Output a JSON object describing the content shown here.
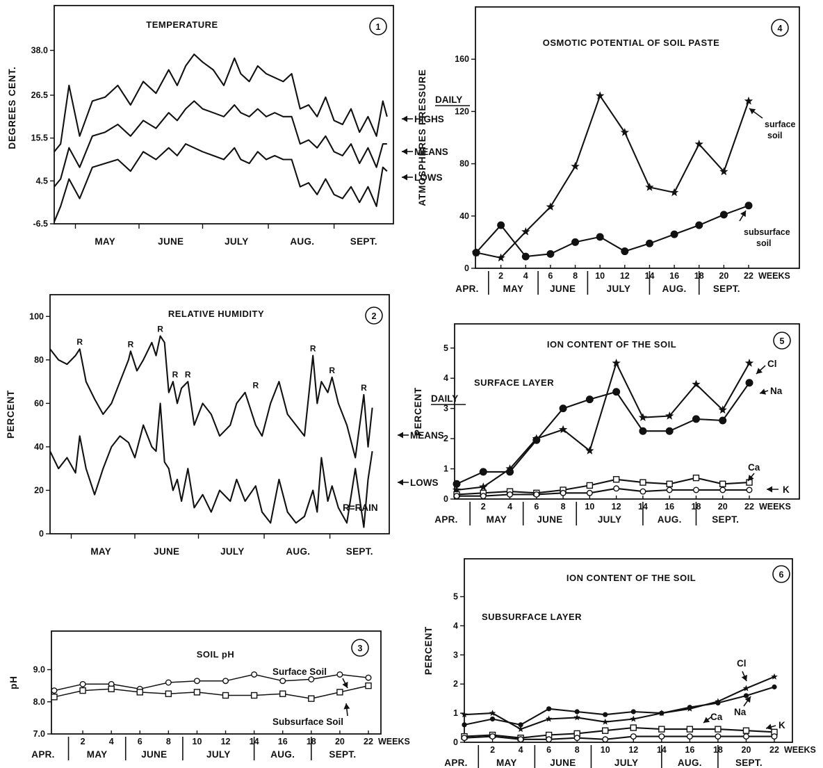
{
  "chart_data": [
    {
      "id": "p1",
      "type": "line",
      "panel_number": "1",
      "title": "TEMPERATURE",
      "ylabel": "DEGREES CENT.",
      "yticks": [
        "38.0",
        "26.5",
        "15.5",
        "4.5",
        "-6.5"
      ],
      "ylim": [
        -6.5,
        49.5
      ],
      "xticks": [
        "MAY",
        "JUNE",
        "JULY",
        "AUG.",
        "SEPT."
      ],
      "x_unit": "day (0 = Apr 21)",
      "legend_header": "DAILY",
      "series": [
        {
          "name": "HIGHS",
          "x": [
            0,
            3,
            7,
            12,
            18,
            24,
            30,
            36,
            42,
            48,
            54,
            58,
            62,
            66,
            70,
            75,
            80,
            85,
            88,
            92,
            96,
            100,
            104,
            108,
            112,
            116,
            120,
            124,
            128,
            132,
            136,
            140,
            144,
            148,
            152,
            155,
            157
          ],
          "values": [
            12,
            14,
            29,
            16,
            25,
            26,
            29,
            24,
            30,
            27,
            33,
            29,
            34,
            37,
            35,
            33,
            29,
            36,
            32,
            30,
            34,
            32,
            31,
            30,
            32,
            23,
            24,
            21,
            26,
            20,
            19,
            23,
            17,
            21,
            16,
            25,
            21
          ]
        },
        {
          "name": "MEANS",
          "x": [
            0,
            3,
            7,
            12,
            18,
            24,
            30,
            36,
            42,
            48,
            54,
            58,
            62,
            66,
            70,
            75,
            80,
            85,
            88,
            92,
            96,
            100,
            104,
            108,
            112,
            116,
            120,
            124,
            128,
            132,
            136,
            140,
            144,
            148,
            152,
            155,
            157
          ],
          "values": [
            3,
            5,
            13,
            8,
            16,
            17,
            19,
            16,
            20,
            18,
            22,
            20,
            23,
            25,
            23,
            22,
            21,
            24,
            22,
            21,
            23,
            21,
            22,
            21,
            21,
            14,
            15,
            13,
            16,
            12,
            11,
            14,
            9,
            13,
            8,
            14,
            14
          ]
        },
        {
          "name": "LOWS",
          "x": [
            0,
            3,
            7,
            12,
            18,
            24,
            30,
            36,
            42,
            48,
            54,
            58,
            62,
            66,
            70,
            75,
            80,
            85,
            88,
            92,
            96,
            100,
            104,
            108,
            112,
            116,
            120,
            124,
            128,
            132,
            136,
            140,
            144,
            148,
            152,
            155,
            157
          ],
          "values": [
            -6,
            -2,
            5,
            0,
            8,
            9,
            10,
            7,
            12,
            10,
            13,
            11,
            14,
            13,
            12,
            11,
            10,
            13,
            10,
            9,
            12,
            10,
            11,
            10,
            10,
            3,
            4,
            1,
            5,
            1,
            0,
            3,
            -1,
            3,
            -2,
            8,
            7
          ]
        }
      ]
    },
    {
      "id": "p2",
      "type": "line",
      "panel_number": "2",
      "title": "RELATIVE HUMIDITY",
      "ylabel": "PERCENT",
      "yticks": [
        "100",
        "80",
        "60",
        "40",
        "20",
        "0"
      ],
      "ylim": [
        0,
        110
      ],
      "xticks": [
        "MAY",
        "JUNE",
        "JULY",
        "AUG.",
        "SEPT."
      ],
      "x_unit": "day (0 = Apr 21)",
      "legend_header": "DAILY",
      "note": "R=RAIN",
      "rain_label": "R",
      "rain_days": [
        14,
        38,
        52,
        59,
        65,
        97,
        124,
        133,
        148
      ],
      "rain_levels": [
        85,
        84,
        91,
        70,
        70,
        65,
        82,
        72,
        64
      ],
      "series": [
        {
          "name": "MEANS",
          "x": [
            0,
            4,
            8,
            12,
            14,
            17,
            21,
            25,
            29,
            33,
            37,
            38,
            41,
            44,
            48,
            50,
            52,
            54,
            56,
            58,
            60,
            62,
            65,
            68,
            72,
            76,
            80,
            85,
            88,
            92,
            97,
            100,
            104,
            108,
            112,
            116,
            120,
            124,
            126,
            128,
            131,
            133,
            136,
            140,
            144,
            148,
            150,
            152
          ],
          "values": [
            85,
            80,
            78,
            82,
            85,
            70,
            62,
            55,
            60,
            70,
            80,
            84,
            75,
            80,
            88,
            82,
            91,
            88,
            65,
            70,
            60,
            67,
            70,
            50,
            60,
            55,
            45,
            50,
            60,
            65,
            50,
            45,
            60,
            70,
            55,
            50,
            45,
            82,
            60,
            70,
            65,
            72,
            60,
            50,
            35,
            64,
            40,
            58
          ]
        },
        {
          "name": "LOWS",
          "x": [
            0,
            4,
            8,
            12,
            14,
            17,
            21,
            25,
            29,
            33,
            37,
            40,
            44,
            48,
            50,
            52,
            54,
            56,
            58,
            60,
            62,
            65,
            68,
            72,
            76,
            80,
            85,
            88,
            92,
            97,
            100,
            104,
            108,
            112,
            116,
            120,
            124,
            126,
            128,
            131,
            133,
            136,
            140,
            144,
            148,
            150,
            152
          ],
          "values": [
            38,
            30,
            35,
            28,
            45,
            30,
            18,
            30,
            40,
            45,
            42,
            35,
            50,
            40,
            38,
            60,
            33,
            30,
            20,
            25,
            15,
            30,
            12,
            18,
            10,
            20,
            15,
            25,
            15,
            22,
            10,
            5,
            25,
            10,
            5,
            8,
            20,
            10,
            35,
            15,
            22,
            12,
            5,
            30,
            3,
            25,
            38
          ]
        }
      ]
    },
    {
      "id": "p3",
      "type": "line",
      "panel_number": "3",
      "title": "SOIL pH",
      "ylabel": "pH",
      "yticks": [
        "9.0",
        "8.0",
        "7.0"
      ],
      "ylim": [
        7.0,
        10.2
      ],
      "xticks": [
        "2",
        "4",
        "6",
        "8",
        "10",
        "12",
        "14",
        "16",
        "18",
        "20",
        "22"
      ],
      "xunit_label": "WEEKS",
      "months": [
        "APR.",
        "MAY",
        "JUNE",
        "JULY",
        "AUG.",
        "SEPT."
      ],
      "month_bounds": [
        1,
        5,
        9,
        14,
        18
      ],
      "x": [
        0,
        2,
        4,
        6,
        8,
        10,
        12,
        14,
        16,
        18,
        20,
        22
      ],
      "series": [
        {
          "name": "Surface Soil",
          "marker": "circle",
          "values": [
            8.35,
            8.55,
            8.55,
            8.4,
            8.6,
            8.65,
            8.65,
            8.85,
            8.65,
            8.7,
            8.85,
            8.75
          ]
        },
        {
          "name": "Subsurface Soil",
          "marker": "square",
          "values": [
            8.15,
            8.35,
            8.4,
            8.3,
            8.25,
            8.3,
            8.2,
            8.2,
            8.25,
            8.1,
            8.3,
            8.5
          ]
        }
      ]
    },
    {
      "id": "p4",
      "type": "line",
      "panel_number": "4",
      "title": "OSMOTIC POTENTIAL OF SOIL PASTE",
      "ylabel": "ATMOSPHERES PRESSURE",
      "yticks": [
        "160",
        "120",
        "80",
        "40",
        "0"
      ],
      "ylim": [
        0,
        200
      ],
      "xticks": [
        "2",
        "4",
        "6",
        "8",
        "10",
        "12",
        "14",
        "16",
        "18",
        "20",
        "22"
      ],
      "xunit_label": "WEEKS",
      "months": [
        "APR.",
        "MAY",
        "JUNE",
        "JULY",
        "AUG.",
        "SEPT."
      ],
      "month_bounds": [
        1,
        5,
        9,
        14,
        18
      ],
      "x": [
        0,
        2,
        4,
        6,
        8,
        10,
        12,
        14,
        16,
        18,
        20,
        22
      ],
      "series": [
        {
          "name": "surface soil",
          "label_lines": [
            "surface",
            "soil"
          ],
          "marker": "star",
          "values": [
            12,
            8,
            28,
            47,
            78,
            132,
            104,
            62,
            58,
            95,
            74,
            128
          ]
        },
        {
          "name": "subsurface soil",
          "label_lines": [
            "subsurface",
            "soil"
          ],
          "marker": "dot",
          "values": [
            12,
            33,
            9,
            11,
            20,
            24,
            13,
            19,
            26,
            33,
            41,
            48
          ]
        }
      ]
    },
    {
      "id": "p5",
      "type": "line",
      "panel_number": "5",
      "title": "ION CONTENT OF THE SOIL",
      "subtitle": "SURFACE LAYER",
      "ylabel": "PERCENT",
      "yticks": [
        "5",
        "4",
        "3",
        "2",
        "1",
        "0"
      ],
      "ylim": [
        0,
        5.8
      ],
      "xticks": [
        "2",
        "4",
        "6",
        "8",
        "10",
        "12",
        "14",
        "16",
        "18",
        "20",
        "22"
      ],
      "xunit_label": "WEEKS",
      "months": [
        "APR.",
        "MAY",
        "JUNE",
        "JULY",
        "AUG.",
        "SEPT."
      ],
      "month_bounds": [
        1,
        5,
        9,
        14,
        18
      ],
      "x": [
        0,
        2,
        4,
        6,
        8,
        10,
        12,
        14,
        16,
        18,
        20,
        22
      ],
      "series": [
        {
          "name": "Cl",
          "marker": "star",
          "values": [
            0.3,
            0.4,
            1.0,
            2.0,
            2.3,
            1.6,
            4.5,
            2.7,
            2.75,
            3.8,
            2.95,
            4.5
          ]
        },
        {
          "name": "Na",
          "marker": "dot",
          "values": [
            0.5,
            0.9,
            0.9,
            1.95,
            3.0,
            3.3,
            3.55,
            2.25,
            2.25,
            2.65,
            2.6,
            3.85
          ]
        },
        {
          "name": "Ca",
          "marker": "square",
          "values": [
            0.15,
            0.2,
            0.25,
            0.2,
            0.3,
            0.45,
            0.65,
            0.55,
            0.5,
            0.7,
            0.5,
            0.55
          ]
        },
        {
          "name": "K",
          "marker": "circle",
          "values": [
            0.1,
            0.1,
            0.15,
            0.15,
            0.2,
            0.2,
            0.35,
            0.25,
            0.3,
            0.3,
            0.3,
            0.3
          ]
        }
      ]
    },
    {
      "id": "p6",
      "type": "line",
      "panel_number": "6",
      "title": "ION CONTENT OF THE SOIL",
      "subtitle": "SUBSURFACE LAYER",
      "ylabel": "PERCENT",
      "yticks": [
        "5",
        "4",
        "3",
        "2",
        "1",
        "0"
      ],
      "ylim": [
        0,
        6.3
      ],
      "xticks": [
        "2",
        "4",
        "6",
        "8",
        "10",
        "12",
        "14",
        "16",
        "18",
        "20",
        "22"
      ],
      "xunit_label": "WEEKS",
      "months": [
        "APR.",
        "MAY",
        "JUNE",
        "JULY",
        "AUG.",
        "SEPT."
      ],
      "month_bounds": [
        1,
        5,
        9,
        14,
        18
      ],
      "x": [
        0,
        2,
        4,
        6,
        8,
        10,
        12,
        14,
        16,
        18,
        20,
        22
      ],
      "series": [
        {
          "name": "Cl",
          "marker": "star",
          "values": [
            0.95,
            1.0,
            0.45,
            0.8,
            0.85,
            0.7,
            0.8,
            1.0,
            1.15,
            1.4,
            1.85,
            2.25
          ]
        },
        {
          "name": "Na",
          "marker": "dot",
          "values": [
            0.6,
            0.8,
            0.6,
            1.15,
            1.05,
            0.95,
            1.05,
            1.0,
            1.2,
            1.35,
            1.6,
            1.9
          ]
        },
        {
          "name": "Ca",
          "marker": "square",
          "values": [
            0.2,
            0.25,
            0.15,
            0.25,
            0.3,
            0.4,
            0.5,
            0.45,
            0.45,
            0.45,
            0.4,
            0.35
          ]
        },
        {
          "name": "K",
          "marker": "circle",
          "values": [
            0.15,
            0.2,
            0.1,
            0.1,
            0.15,
            0.1,
            0.2,
            0.2,
            0.2,
            0.2,
            0.2,
            0.2
          ]
        }
      ]
    }
  ]
}
